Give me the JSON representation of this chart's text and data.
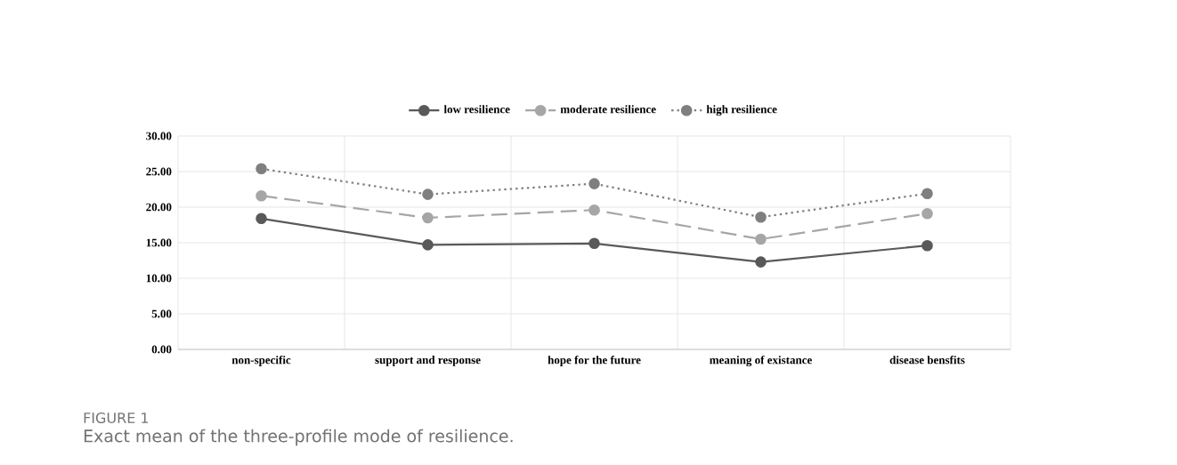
{
  "chart_data": {
    "type": "line",
    "categories": [
      "non-specific",
      "support and response",
      "hope for the future",
      "meaning of existance",
      "disease bensfits"
    ],
    "series": [
      {
        "name": "low resilience",
        "color": "#595959",
        "line_style": "solid",
        "values": [
          18.4,
          14.7,
          14.9,
          12.3,
          14.6
        ]
      },
      {
        "name": "moderate resilience",
        "color": "#a6a6a6",
        "line_style": "dashed",
        "values": [
          21.6,
          18.5,
          19.6,
          15.5,
          19.1
        ]
      },
      {
        "name": "high resilience",
        "color": "#7f7f7f",
        "line_style": "dotted",
        "values": [
          25.4,
          21.8,
          23.3,
          18.6,
          21.9
        ]
      }
    ],
    "ylim": [
      0,
      30
    ],
    "yticks": [
      {
        "value": 0,
        "label": "0.00"
      },
      {
        "value": 5,
        "label": "5.00"
      },
      {
        "value": 10,
        "label": "10.00"
      },
      {
        "value": 15,
        "label": "15.00"
      },
      {
        "value": 20,
        "label": "20.00"
      },
      {
        "value": 25,
        "label": "25.00"
      },
      {
        "value": 30,
        "label": "30.00"
      }
    ],
    "grid": true,
    "legend": "top",
    "marker": "circle",
    "annotations": [
      "FIGURE 1",
      "Exact mean of the three-profile mode of resilience."
    ]
  }
}
